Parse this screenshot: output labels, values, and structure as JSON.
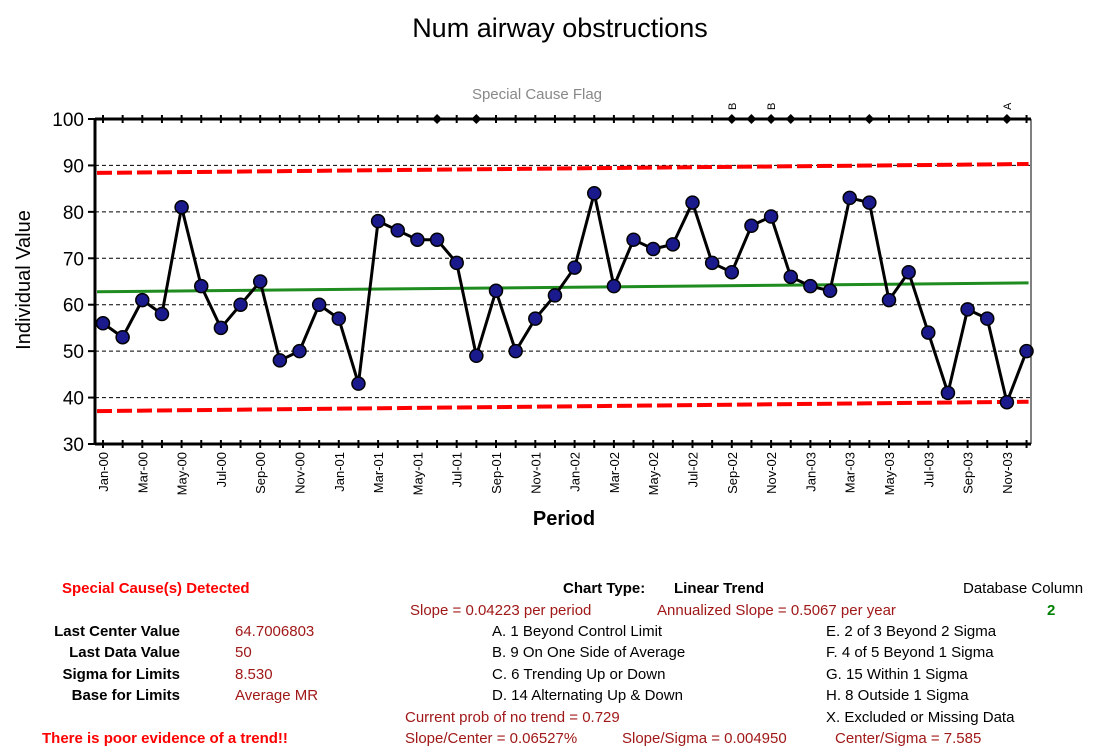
{
  "chart_data": {
    "type": "line",
    "title": "Num airway obstructions",
    "flag_title": "Special Cause Flag",
    "xlabel": "Period",
    "ylabel": "Individual Value",
    "ylim": [
      30,
      100
    ],
    "yticks": [
      30,
      40,
      50,
      60,
      70,
      80,
      90,
      100
    ],
    "grid": true,
    "x": [
      "Jan-00",
      "Feb-00",
      "Mar-00",
      "Apr-00",
      "May-00",
      "Jun-00",
      "Jul-00",
      "Aug-00",
      "Sep-00",
      "Oct-00",
      "Nov-00",
      "Dec-00",
      "Jan-01",
      "Feb-01",
      "Mar-01",
      "Apr-01",
      "May-01",
      "Jun-01",
      "Jul-01",
      "Aug-01",
      "Sep-01",
      "Oct-01",
      "Nov-01",
      "Dec-01",
      "Jan-02",
      "Feb-02",
      "Mar-02",
      "Apr-02",
      "May-02",
      "Jun-02",
      "Jul-02",
      "Aug-02",
      "Sep-02",
      "Oct-02",
      "Nov-02",
      "Dec-02",
      "Jan-03",
      "Feb-03",
      "Mar-03",
      "Apr-03",
      "May-03",
      "Jun-03",
      "Jul-03",
      "Aug-03",
      "Sep-03",
      "Oct-03",
      "Nov-03",
      "Dec-03"
    ],
    "tick_labels": [
      "Jan-00",
      "Mar-00",
      "May-00",
      "Jul-00",
      "Sep-00",
      "Nov-00",
      "Jan-01",
      "Mar-01",
      "May-01",
      "Jul-01",
      "Sep-01",
      "Nov-01",
      "Jan-02",
      "Mar-02",
      "May-02",
      "Jul-02",
      "Sep-02",
      "Nov-02",
      "Jan-03",
      "Mar-03",
      "May-03",
      "Jul-03",
      "Sep-03",
      "Nov-03"
    ],
    "series": [
      {
        "values": [
          56,
          53,
          61,
          58,
          81,
          64,
          55,
          60,
          65,
          48,
          50,
          60,
          57,
          43,
          78,
          76,
          74,
          74,
          69,
          49,
          63,
          50,
          57,
          62,
          68,
          84,
          64,
          74,
          72,
          73,
          82,
          69,
          67,
          77,
          79,
          66,
          64,
          63,
          83,
          82,
          61,
          67,
          54,
          41,
          59,
          57,
          39,
          50
        ],
        "color": "#000000",
        "marker_color": "#1a1a8c"
      }
    ],
    "center_line": {
      "start": 62.8,
      "end": 64.7,
      "color": "#1f8c1f"
    },
    "ucl": {
      "start": 88.4,
      "end": 90.3,
      "color": "#ff0000"
    },
    "lcl": {
      "start": 37.1,
      "end": 39.1,
      "color": "#ff0000"
    },
    "flag_markers": [
      17,
      19,
      32,
      33,
      34,
      35,
      39,
      46
    ],
    "flag_letters": [
      {
        "index": 32,
        "letter": "B"
      },
      {
        "index": 34,
        "letter": "B"
      },
      {
        "index": 46,
        "letter": "A"
      }
    ]
  },
  "summary": {
    "special_cause": "Special Cause(s) Detected",
    "chart_type_label": "Chart Type:",
    "chart_type_value": "Linear Trend",
    "database_column_label": "Database Column",
    "database_column_value": "2",
    "slope": "Slope = 0.04223 per period",
    "annualized_slope": "Annualized Slope = 0.5067 per year",
    "last_center_label": "Last Center Value",
    "last_center_value": "64.7006803",
    "last_data_label": "Last Data Value",
    "last_data_value": "50",
    "sigma_label": "Sigma for Limits",
    "sigma_value": "8.530",
    "base_label": "Base for Limits",
    "base_value": "Average MR",
    "rule_a": "A.  1 Beyond Control Limit",
    "rule_b": "B.  9 On One Side of Average",
    "rule_c": "C.  6 Trending Up or Down",
    "rule_d": "D.  14 Alternating  Up & Down",
    "rule_e": "E.  2 of 3 Beyond 2 Sigma",
    "rule_f": "F.  4 of 5 Beyond 1 Sigma",
    "rule_g": "G.  15 Within 1 Sigma",
    "rule_h": "H.  8 Outside 1 Sigma",
    "rule_x": "X.  Excluded or Missing Data",
    "prob_no_trend": "Current prob of no trend = 0.729",
    "trend_evidence": "There is poor evidence of a trend!!",
    "slope_center": "Slope/Center = 0.06527%",
    "slope_sigma": "Slope/Sigma = 0.004950",
    "center_sigma": "Center/Sigma = 7.585"
  }
}
